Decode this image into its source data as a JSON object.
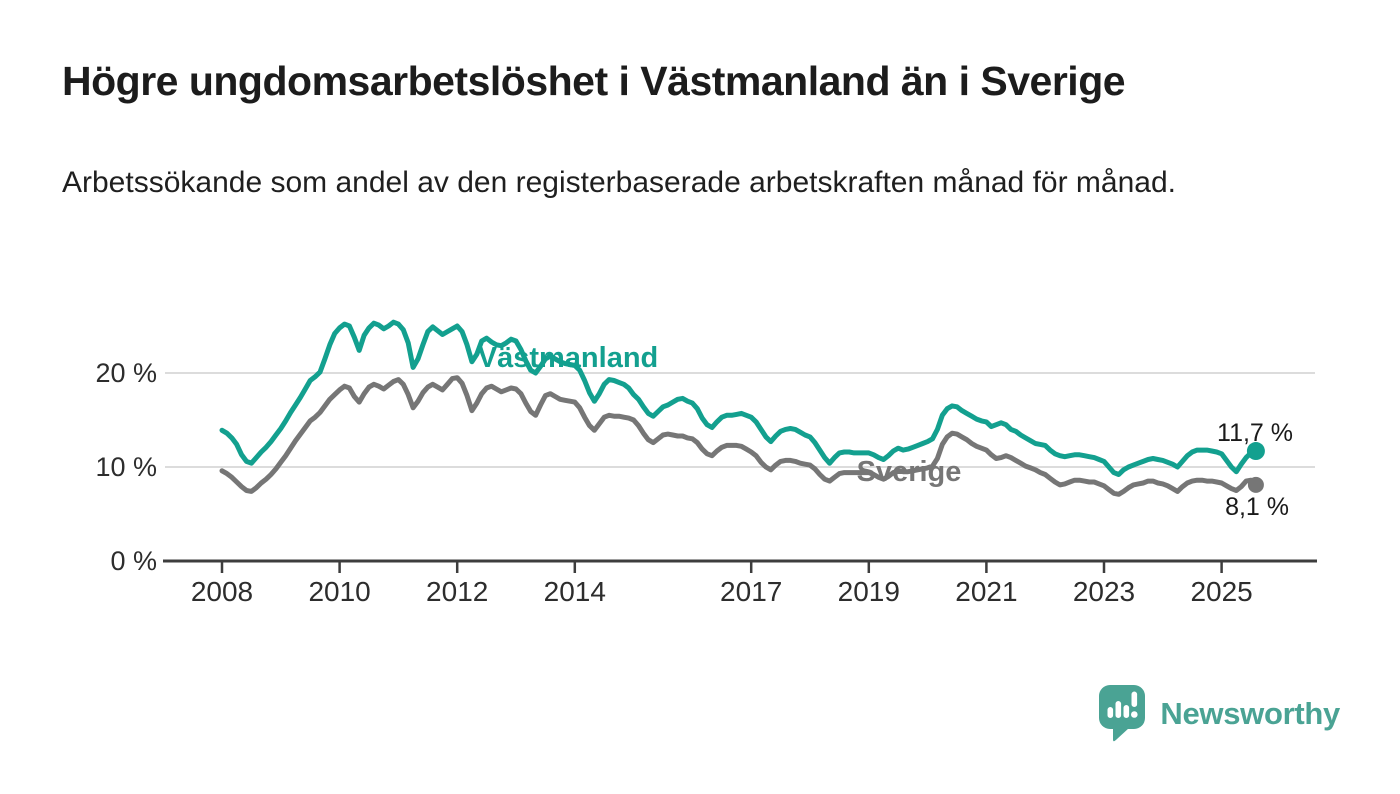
{
  "header": {
    "title": "Högre ungdomsarbetslöshet i Västmanland än i Sverige",
    "subtitle": "Arbetssökande som andel av den registerbaserade arbetskraften månad för månad."
  },
  "footer": {
    "brand": "Newsworthy",
    "logo_icon": "bar-chart-speech-bubble-icon"
  },
  "colors": {
    "vastmanland_line": "#13a08f",
    "sverige_line": "#767676",
    "brand_teal": "#4aa394",
    "grid": "#dcdcdc",
    "axis": "#3d3d3d",
    "tick_text": "#2d2d2d",
    "value_text": "#1a1a1a"
  },
  "chart_data": {
    "type": "line",
    "title": "Högre ungdomsarbetslöshet i Västmanland än i Sverige",
    "subtitle": "Arbetssökande som andel av den registerbaserade arbetskraften månad för månad.",
    "unit": "%",
    "frequency": "monthly",
    "start": {
      "year": 2008,
      "month": 1
    },
    "end": {
      "year": 2025,
      "month": 8
    },
    "grid": "horizontal",
    "legend": "inline-labels",
    "x_axis": {
      "ticks": [
        2008,
        2010,
        2012,
        2014,
        2017,
        2019,
        2021,
        2023,
        2025
      ]
    },
    "y_axis": {
      "ticks": [
        0,
        10,
        20
      ],
      "tick_labels": [
        "0 %",
        "10 %",
        "20 %"
      ],
      "ylim": [
        0,
        27
      ]
    },
    "series": [
      {
        "id": "vastmanland",
        "name": "Västmanland",
        "color": "#13a08f",
        "end_label": "11,7 %",
        "last_value": 11.7,
        "values": [
          13.9,
          13.6,
          13.1,
          12.4,
          11.3,
          10.6,
          10.4,
          11.0,
          11.6,
          12.1,
          12.7,
          13.4,
          14.1,
          14.9,
          15.8,
          16.6,
          17.4,
          18.3,
          19.2,
          19.6,
          20.1,
          21.5,
          23.0,
          24.2,
          24.8,
          25.2,
          25.0,
          23.8,
          22.4,
          24.0,
          24.8,
          25.3,
          25.1,
          24.7,
          25.0,
          25.4,
          25.2,
          24.6,
          23.2,
          20.6,
          21.5,
          23.0,
          24.4,
          24.9,
          24.5,
          24.1,
          24.4,
          24.7,
          25.0,
          24.4,
          23.0,
          21.2,
          22.0,
          23.4,
          23.7,
          23.3,
          23.0,
          22.9,
          23.2,
          23.6,
          23.4,
          22.5,
          21.3,
          20.3,
          20.0,
          20.7,
          21.5,
          21.8,
          21.5,
          21.2,
          21.0,
          20.9,
          20.8,
          20.3,
          19.2,
          17.9,
          17.0,
          17.8,
          18.8,
          19.3,
          19.2,
          19.0,
          18.8,
          18.4,
          17.7,
          17.2,
          16.4,
          15.7,
          15.4,
          15.9,
          16.4,
          16.6,
          16.9,
          17.2,
          17.3,
          17.0,
          16.8,
          16.2,
          15.2,
          14.5,
          14.2,
          14.8,
          15.3,
          15.5,
          15.5,
          15.6,
          15.7,
          15.5,
          15.3,
          14.8,
          14.0,
          13.2,
          12.7,
          13.3,
          13.8,
          14.0,
          14.1,
          14.0,
          13.7,
          13.4,
          13.2,
          12.6,
          11.8,
          11.0,
          10.4,
          11.0,
          11.5,
          11.6,
          11.6,
          11.5,
          11.5,
          11.5,
          11.5,
          11.3,
          11.0,
          10.8,
          11.2,
          11.7,
          12.0,
          11.8,
          11.9,
          12.1,
          12.3,
          12.5,
          12.7,
          13.0,
          14.0,
          15.5,
          16.2,
          16.5,
          16.4,
          16.0,
          15.7,
          15.4,
          15.1,
          14.9,
          14.8,
          14.3,
          14.5,
          14.7,
          14.5,
          14.0,
          13.8,
          13.4,
          13.1,
          12.8,
          12.5,
          12.4,
          12.3,
          11.8,
          11.4,
          11.2,
          11.1,
          11.2,
          11.3,
          11.3,
          11.2,
          11.1,
          11.0,
          10.8,
          10.6,
          10.0,
          9.4,
          9.2,
          9.7,
          10.0,
          10.2,
          10.4,
          10.6,
          10.8,
          10.9,
          10.8,
          10.7,
          10.5,
          10.3,
          10.0,
          10.6,
          11.2,
          11.6,
          11.8,
          11.8,
          11.8,
          11.7,
          11.6,
          11.4,
          10.7,
          10.0,
          9.5,
          10.3,
          11.0,
          11.5,
          11.7
        ]
      },
      {
        "id": "sverige",
        "name": "Sverige",
        "color": "#767676",
        "end_label": "8,1 %",
        "last_value": 8.1,
        "values": [
          9.6,
          9.3,
          8.9,
          8.4,
          7.9,
          7.5,
          7.4,
          7.8,
          8.3,
          8.7,
          9.2,
          9.8,
          10.5,
          11.2,
          12.0,
          12.8,
          13.5,
          14.2,
          14.9,
          15.3,
          15.8,
          16.5,
          17.2,
          17.7,
          18.2,
          18.6,
          18.4,
          17.5,
          16.9,
          17.8,
          18.5,
          18.8,
          18.6,
          18.3,
          18.7,
          19.1,
          19.3,
          18.8,
          17.7,
          16.3,
          17.0,
          17.9,
          18.5,
          18.8,
          18.5,
          18.2,
          18.8,
          19.4,
          19.5,
          18.9,
          17.6,
          16.0,
          16.8,
          17.8,
          18.4,
          18.6,
          18.3,
          18.0,
          18.2,
          18.4,
          18.3,
          17.8,
          16.8,
          15.9,
          15.5,
          16.6,
          17.6,
          17.8,
          17.5,
          17.2,
          17.1,
          17.0,
          16.9,
          16.3,
          15.3,
          14.4,
          13.9,
          14.6,
          15.3,
          15.5,
          15.4,
          15.4,
          15.3,
          15.2,
          15.0,
          14.4,
          13.6,
          12.9,
          12.6,
          13.0,
          13.4,
          13.5,
          13.4,
          13.3,
          13.3,
          13.1,
          13.0,
          12.6,
          11.9,
          11.4,
          11.2,
          11.7,
          12.1,
          12.3,
          12.3,
          12.3,
          12.2,
          11.9,
          11.6,
          11.2,
          10.5,
          10.0,
          9.7,
          10.2,
          10.6,
          10.7,
          10.7,
          10.6,
          10.4,
          10.3,
          10.2,
          9.8,
          9.2,
          8.7,
          8.5,
          8.9,
          9.3,
          9.4,
          9.4,
          9.4,
          9.4,
          9.4,
          9.4,
          9.2,
          8.9,
          8.7,
          9.0,
          9.4,
          9.6,
          9.5,
          9.5,
          9.6,
          9.7,
          9.8,
          9.9,
          10.1,
          10.9,
          12.4,
          13.2,
          13.6,
          13.5,
          13.2,
          12.9,
          12.5,
          12.2,
          12.0,
          11.8,
          11.3,
          10.9,
          11.0,
          11.2,
          11.0,
          10.7,
          10.4,
          10.1,
          9.9,
          9.7,
          9.4,
          9.2,
          8.8,
          8.4,
          8.1,
          8.2,
          8.4,
          8.6,
          8.6,
          8.5,
          8.4,
          8.4,
          8.2,
          8.0,
          7.6,
          7.2,
          7.1,
          7.4,
          7.8,
          8.1,
          8.2,
          8.3,
          8.5,
          8.5,
          8.3,
          8.2,
          8.0,
          7.7,
          7.4,
          7.9,
          8.3,
          8.5,
          8.6,
          8.6,
          8.5,
          8.5,
          8.4,
          8.3,
          8.0,
          7.7,
          7.5,
          7.9,
          8.5,
          8.6,
          8.1
        ]
      }
    ]
  }
}
